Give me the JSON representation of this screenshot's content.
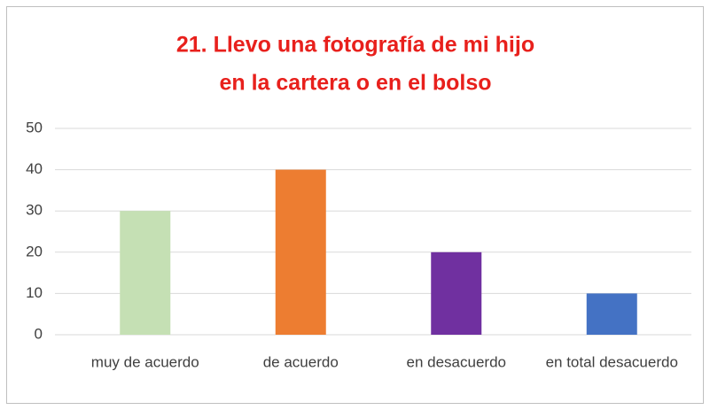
{
  "chart_data": {
    "type": "bar",
    "title": [
      "21. Llevo una fotografía de mi hijo",
      "en la cartera o en el bolso"
    ],
    "categories": [
      "muy de acuerdo",
      "de acuerdo",
      "en desacuerdo",
      "en total desacuerdo"
    ],
    "values": [
      30,
      40,
      20,
      10
    ],
    "colors": [
      "#c5e0b4",
      "#ed7d31",
      "#7030a0",
      "#4472c4"
    ],
    "ylim": [
      0,
      50
    ],
    "yticks": [
      0,
      10,
      20,
      30,
      40,
      50
    ],
    "grid": true
  }
}
